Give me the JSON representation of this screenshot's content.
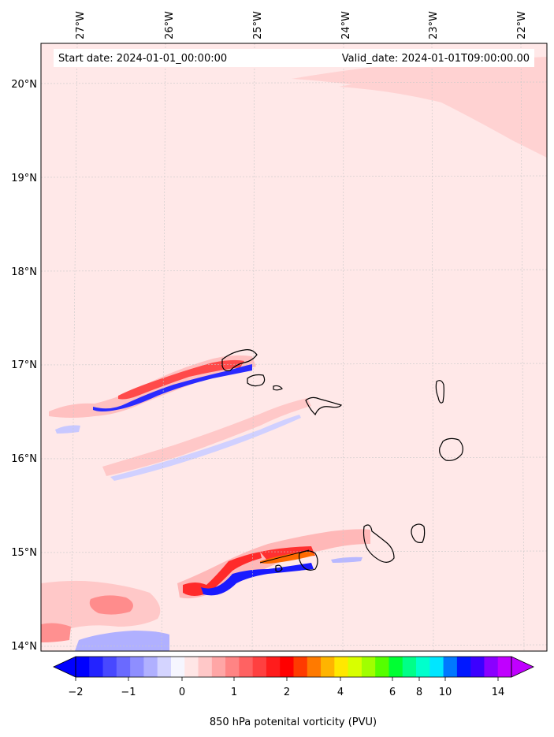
{
  "header": {
    "start_date": "Start date: 2024-01-01_00:00:00",
    "valid_date": "Valid_date: 2024-01-01T09:00:00.00"
  },
  "axes": {
    "lon_labels": [
      "27°W",
      "26°W",
      "25°W",
      "24°W",
      "23°W",
      "22°W"
    ],
    "lat_labels": [
      "20°N",
      "19°N",
      "18°N",
      "17°N",
      "16°N",
      "15°N",
      "14°N"
    ]
  },
  "colorbar": {
    "label": "850 hPa potenital vorticity (PVU)",
    "tick_labels": [
      "−2",
      "−1",
      "0",
      "1",
      "2",
      "4",
      "6",
      "8",
      "10",
      "14"
    ],
    "colors": [
      "#0000ff",
      "#2323ff",
      "#4848ff",
      "#6a6aff",
      "#8e8eff",
      "#b0b0ff",
      "#d4d4ff",
      "#f6f6ff",
      "#ffe6e6",
      "#ffc8c8",
      "#ffa6a6",
      "#ff8484",
      "#ff6262",
      "#ff4040",
      "#ff1c1c",
      "#ff0000",
      "#ff3a00",
      "#ff7a00",
      "#ffb400",
      "#ffe800",
      "#d8ff00",
      "#a0ff00",
      "#55ff00",
      "#00ff33",
      "#00ff88",
      "#00ffcc",
      "#00e6ff",
      "#0078ff",
      "#0018ff",
      "#3c00ff",
      "#8a00ff",
      "#c000ff"
    ]
  },
  "colors": {
    "background_field": "#ffe8e8",
    "light_pink": "#ffd2d2",
    "pink": "#ffb0b0",
    "red": "#ff2020",
    "orange": "#ff6a00",
    "blue": "#1a1aff",
    "light_blue": "#c8c8ff",
    "coast": "#000000"
  }
}
